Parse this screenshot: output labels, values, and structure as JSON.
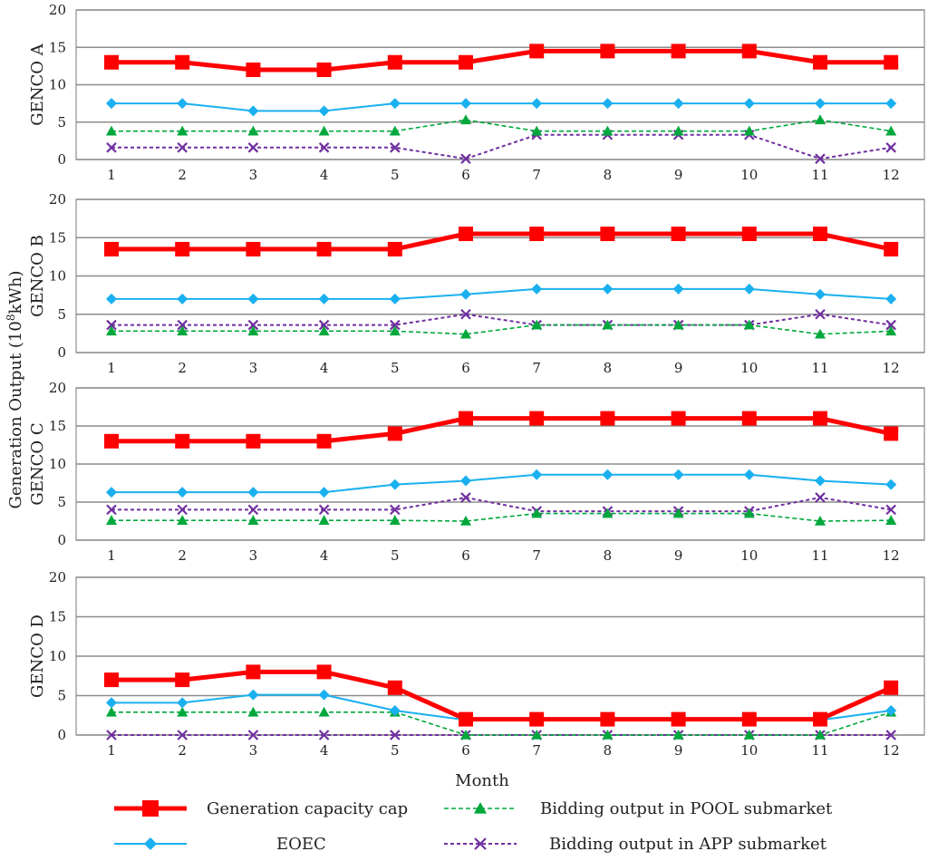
{
  "chart_data": [
    {
      "type": "line",
      "panel": "GENCO A",
      "ylabel": "GENCO A",
      "ylim": [
        0,
        20
      ],
      "yticks": [
        "0",
        "5",
        "10",
        "15",
        "20"
      ],
      "categories": [
        "1",
        "2",
        "3",
        "4",
        "5",
        "6",
        "7",
        "8",
        "9",
        "10",
        "11",
        "12"
      ],
      "series": [
        {
          "name": "Generation capacity cap",
          "color": "#ff0000",
          "values": [
            13,
            13,
            12,
            12,
            13,
            13,
            14.5,
            14.5,
            14.5,
            14.5,
            13,
            13
          ]
        },
        {
          "name": "EOEC",
          "color": "#1ab0f0",
          "values": [
            7.5,
            7.5,
            6.5,
            6.5,
            7.5,
            7.5,
            7.5,
            7.5,
            7.5,
            7.5,
            7.5,
            7.5
          ]
        },
        {
          "name": "Bidding output in POOL submarket",
          "color": "#00a83c",
          "values": [
            3.8,
            3.8,
            3.8,
            3.8,
            3.8,
            5.3,
            3.8,
            3.8,
            3.8,
            3.8,
            5.3,
            3.8
          ]
        },
        {
          "name": "Bidding output in APP submarket",
          "color": "#7030a0",
          "values": [
            1.6,
            1.6,
            1.6,
            1.6,
            1.6,
            0.1,
            3.3,
            3.3,
            3.3,
            3.3,
            0.1,
            1.6
          ]
        }
      ]
    },
    {
      "type": "line",
      "panel": "GENCO B",
      "ylabel": "GENCO B",
      "ylim": [
        0,
        20
      ],
      "yticks": [
        "0",
        "5",
        "10",
        "15",
        "20"
      ],
      "categories": [
        "1",
        "2",
        "3",
        "4",
        "5",
        "6",
        "7",
        "8",
        "9",
        "10",
        "11",
        "12"
      ],
      "series": [
        {
          "name": "Generation capacity cap",
          "color": "#ff0000",
          "values": [
            13.5,
            13.5,
            13.5,
            13.5,
            13.5,
            15.5,
            15.5,
            15.5,
            15.5,
            15.5,
            15.5,
            13.5
          ]
        },
        {
          "name": "EOEC",
          "color": "#1ab0f0",
          "values": [
            7,
            7,
            7,
            7,
            7,
            7.6,
            8.3,
            8.3,
            8.3,
            8.3,
            7.6,
            7
          ]
        },
        {
          "name": "Bidding output in POOL submarket",
          "color": "#00a83c",
          "values": [
            2.8,
            2.8,
            2.8,
            2.8,
            2.8,
            2.4,
            3.6,
            3.6,
            3.6,
            3.6,
            2.4,
            2.8
          ]
        },
        {
          "name": "Bidding output in APP submarket",
          "color": "#7030a0",
          "values": [
            3.6,
            3.6,
            3.6,
            3.6,
            3.6,
            5,
            3.6,
            3.6,
            3.6,
            3.6,
            5,
            3.6
          ]
        }
      ]
    },
    {
      "type": "line",
      "panel": "GENCO C",
      "ylabel": "GENCO C",
      "ylim": [
        0,
        20
      ],
      "yticks": [
        "0",
        "5",
        "10",
        "15",
        "20"
      ],
      "categories": [
        "1",
        "2",
        "3",
        "4",
        "5",
        "6",
        "7",
        "8",
        "9",
        "10",
        "11",
        "12"
      ],
      "series": [
        {
          "name": "Generation capacity cap",
          "color": "#ff0000",
          "values": [
            13,
            13,
            13,
            13,
            14,
            16,
            16,
            16,
            16,
            16,
            16,
            14
          ]
        },
        {
          "name": "EOEC",
          "color": "#1ab0f0",
          "values": [
            6.3,
            6.3,
            6.3,
            6.3,
            7.3,
            7.8,
            8.6,
            8.6,
            8.6,
            8.6,
            7.8,
            7.3
          ]
        },
        {
          "name": "Bidding output in POOL submarket",
          "color": "#00a83c",
          "values": [
            2.6,
            2.6,
            2.6,
            2.6,
            2.6,
            2.5,
            3.5,
            3.5,
            3.5,
            3.5,
            2.5,
            2.6
          ]
        },
        {
          "name": "Bidding output in APP submarket",
          "color": "#7030a0",
          "values": [
            4,
            4,
            4,
            4,
            4,
            5.6,
            3.8,
            3.8,
            3.8,
            3.8,
            5.6,
            4
          ]
        }
      ]
    },
    {
      "type": "line",
      "panel": "GENCO D",
      "ylabel": "GENCO D",
      "xlabel": "Month",
      "ylim": [
        0,
        20
      ],
      "yticks": [
        "0",
        "5",
        "10",
        "15",
        "20"
      ],
      "categories": [
        "1",
        "2",
        "3",
        "4",
        "5",
        "6",
        "7",
        "8",
        "9",
        "10",
        "11",
        "12"
      ],
      "series": [
        {
          "name": "Generation capacity cap",
          "color": "#ff0000",
          "values": [
            7,
            7,
            8,
            8,
            6,
            2,
            2,
            2,
            2,
            2,
            2,
            6
          ]
        },
        {
          "name": "EOEC",
          "color": "#1ab0f0",
          "values": [
            4.1,
            4.1,
            5.1,
            5.1,
            3.1,
            1.9,
            1.9,
            1.9,
            1.9,
            1.9,
            1.9,
            3.1
          ]
        },
        {
          "name": "Bidding output in POOL submarket",
          "color": "#00a83c",
          "values": [
            2.9,
            2.9,
            2.9,
            2.9,
            2.9,
            0,
            0,
            0,
            0,
            0,
            0,
            2.9
          ]
        },
        {
          "name": "Bidding output in APP submarket",
          "color": "#7030a0",
          "values": [
            0,
            0,
            0,
            0,
            0,
            0,
            0,
            0,
            0,
            0,
            0,
            0
          ]
        }
      ]
    }
  ],
  "shared_ylabel": {
    "prefix": "Generation Output (10",
    "sup": "8",
    "suffix": "kWh)"
  },
  "legend": [
    {
      "name": "Generation capacity cap",
      "color": "#ff0000",
      "marker": "square-icon",
      "dash": "solid"
    },
    {
      "name": "Bidding output in POOL submarket",
      "color": "#00a83c",
      "marker": "triangle-icon",
      "dash": "dashed"
    },
    {
      "name": "EOEC",
      "color": "#1ab0f0",
      "marker": "diamond-icon",
      "dash": "solid"
    },
    {
      "name": "Bidding output in APP submarket",
      "color": "#7030a0",
      "marker": "cross-icon",
      "dash": "dashed"
    }
  ]
}
